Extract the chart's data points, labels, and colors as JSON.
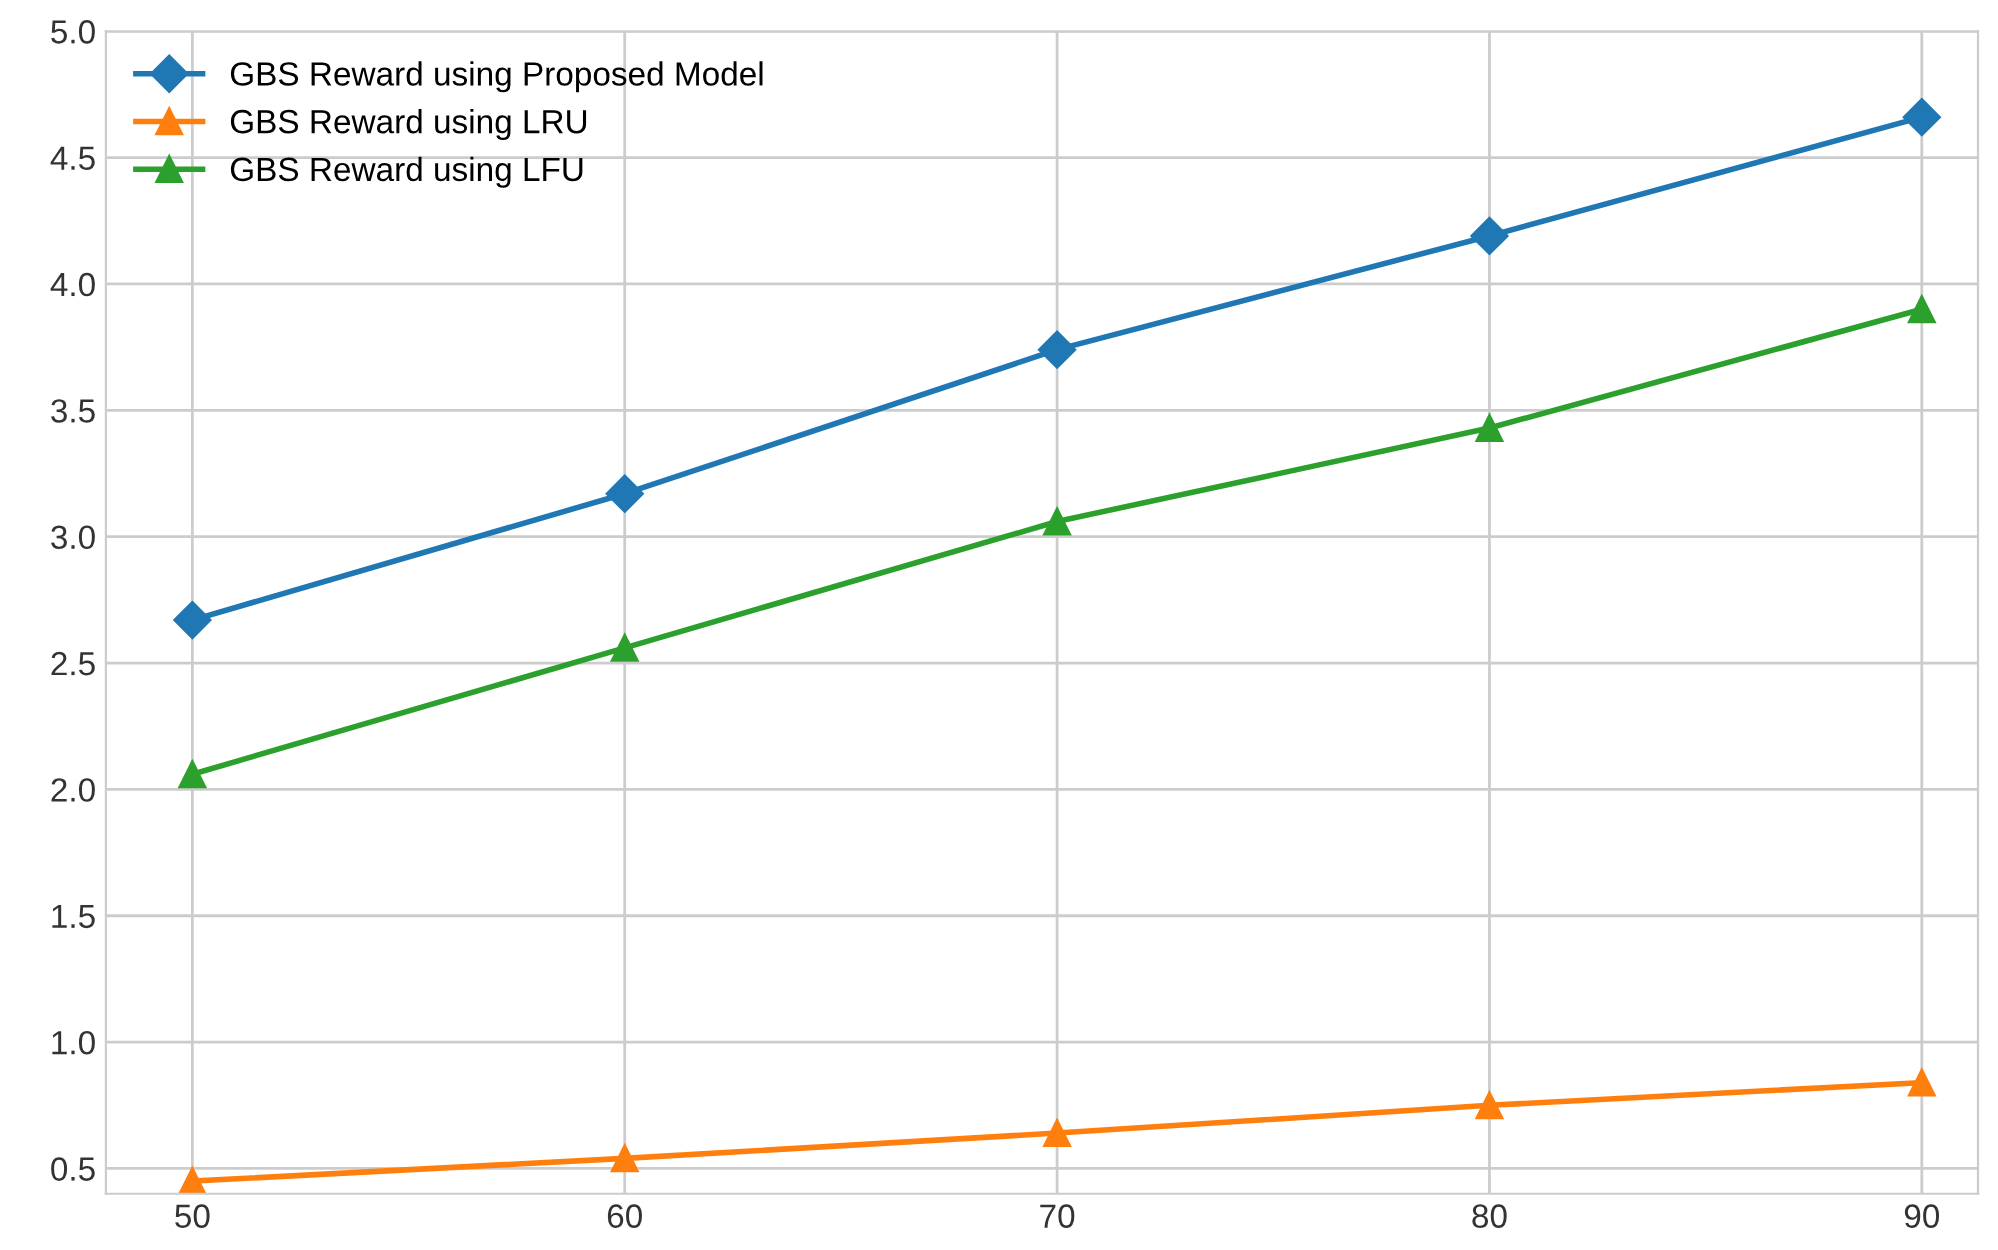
{
  "chart_data": {
    "type": "line",
    "x": [
      50,
      60,
      70,
      80,
      90
    ],
    "series": [
      {
        "name": "GBS Reward using Proposed Model",
        "color": "#1f77b4",
        "marker": "diamond",
        "values": [
          2.67,
          3.17,
          3.74,
          4.19,
          4.66
        ]
      },
      {
        "name": "GBS Reward using LRU",
        "color": "#ff7f0e",
        "marker": "triangle",
        "values": [
          0.45,
          0.54,
          0.64,
          0.75,
          0.84
        ]
      },
      {
        "name": "GBS Reward using LFU",
        "color": "#2ca02c",
        "marker": "triangle",
        "values": [
          2.06,
          2.56,
          3.06,
          3.43,
          3.9
        ]
      }
    ],
    "xlim": [
      48,
      91.3
    ],
    "xticks": [
      50,
      60,
      70,
      80,
      90
    ],
    "ylim": [
      0.4,
      5.0
    ],
    "yticks": [
      0.5,
      {
        "value": 1,
        "label": "1.0"
      },
      1.5,
      {
        "value": 2,
        "label": "2.0"
      },
      2.5,
      {
        "value": 3,
        "label": "3.0"
      },
      3.5,
      {
        "value": 4,
        "label": "4.0"
      },
      4.5,
      {
        "value": 5,
        "label": "5.0"
      }
    ],
    "grid": true,
    "legend": "top left",
    "line_style": "solid"
  }
}
